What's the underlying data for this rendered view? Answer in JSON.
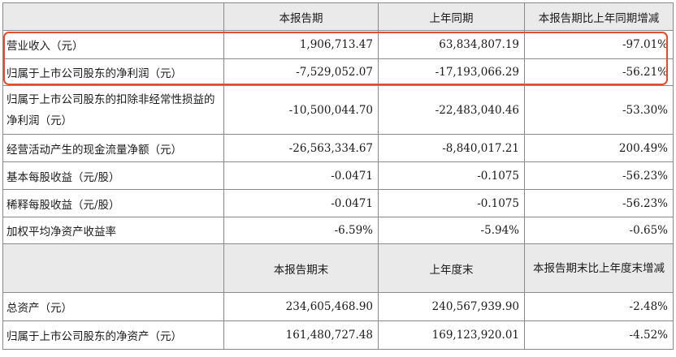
{
  "header1": {
    "blank": "",
    "col1": "本报告期",
    "col2": "上年同期",
    "col3": "本报告期比上年同期增减"
  },
  "rows1": [
    {
      "label": "营业收入（元）",
      "current": "1,906,713.47",
      "prior": "63,834,807.19",
      "change": "-97.01%"
    },
    {
      "label": "归属于上市公司股东的净利润（元）",
      "current": "-7,529,052.07",
      "prior": "-17,193,066.29",
      "change": "-56.21%"
    },
    {
      "label": "归属于上市公司股东的扣除非经常性损益的净利润（元）",
      "current": "-10,500,044.70",
      "prior": "-22,483,040.46",
      "change": "-53.30%"
    },
    {
      "label": "经营活动产生的现金流量净额（元）",
      "current": "-26,563,334.67",
      "prior": "-8,840,017.21",
      "change": "200.49%"
    },
    {
      "label": "基本每股收益（元/股）",
      "current": "-0.0471",
      "prior": "-0.1075",
      "change": "-56.23%"
    },
    {
      "label": "稀释每股收益（元/股）",
      "current": "-0.0471",
      "prior": "-0.1075",
      "change": "-56.23%"
    },
    {
      "label": "加权平均净资产收益率",
      "current": "-6.59%",
      "prior": "-5.94%",
      "change": "-0.65%"
    }
  ],
  "header2": {
    "blank": "",
    "col1": "本报告期末",
    "col2": "上年度末",
    "col3": "本报告期末比上年度末增减"
  },
  "rows2": [
    {
      "label": "总资产（元）",
      "current": "234,605,468.90",
      "prior": "240,567,939.90",
      "change": "-2.48%"
    },
    {
      "label": "归属于上市公司股东的净资产（元）",
      "current": "161,480,727.48",
      "prior": "169,123,920.01",
      "change": "-4.52%"
    }
  ],
  "highlight_color": "#e8482c"
}
